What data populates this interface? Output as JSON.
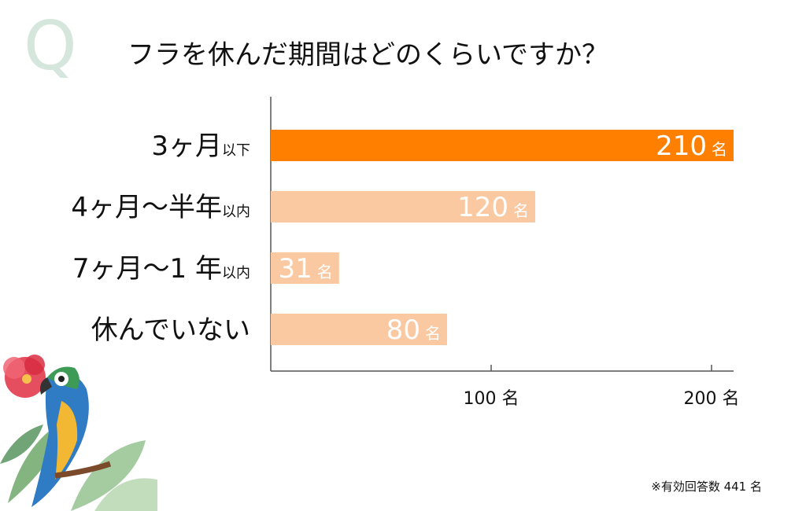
{
  "page": {
    "q_letter": "Q",
    "title": "フラを休んだ期間はどのくらいですか？",
    "footnote": "※有効回答数 441 名"
  },
  "colors": {
    "highlight_bar": "#ff7f00",
    "bar": "#fbc9a1",
    "axis": "#555555",
    "q_letter": "#d5e6dc"
  },
  "chart_data": {
    "type": "bar",
    "orientation": "horizontal",
    "title": "フラを休んだ期間はどのくらいですか？",
    "categories": [
      {
        "main": "3ヶ月",
        "sub": "以下"
      },
      {
        "main": "4ヶ月〜半年",
        "sub": "以内"
      },
      {
        "main": "7ヶ月〜1 年",
        "sub": "以内"
      },
      {
        "main": "休んでいない",
        "sub": ""
      }
    ],
    "values": [
      210,
      120,
      31,
      80
    ],
    "value_unit": "名",
    "highlight_index": 0,
    "xlim": [
      0,
      210
    ],
    "ticks": [
      {
        "value": 100,
        "label": "100 名"
      },
      {
        "value": 200,
        "label": "200 名"
      }
    ],
    "grid": false,
    "legend": "none",
    "total_note": "※有効回答数 441 名"
  },
  "decor": {
    "illustration": "parrot-and-hibiscus-illustration"
  }
}
